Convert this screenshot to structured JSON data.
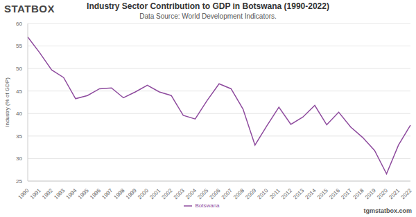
{
  "chart_data": {
    "type": "line",
    "logo": "STATBOX",
    "title": "Industry Sector Contribution to GDP in Botswana (1990-2022)",
    "subtitle": "Data Source: World Development Indicators.",
    "y_label": "Industry (% of GDP)",
    "footer": "tgmstatbox.com",
    "categories": [
      "1990",
      "1991",
      "1992",
      "1993",
      "1994",
      "1995",
      "1996",
      "1997",
      "1998",
      "1999",
      "2000",
      "2001",
      "2002",
      "2003",
      "2004",
      "2005",
      "2006",
      "2007",
      "2008",
      "2009",
      "2010",
      "2011",
      "2012",
      "2013",
      "2014",
      "2015",
      "2016",
      "2017",
      "2018",
      "2019",
      "2020",
      "2021",
      "2022"
    ],
    "series": [
      {
        "name": "Botswana",
        "color": "#8e4b9e",
        "values": [
          57.0,
          53.5,
          49.7,
          48.0,
          43.3,
          44.0,
          45.5,
          45.7,
          43.5,
          44.8,
          46.3,
          44.8,
          44.0,
          39.6,
          38.8,
          42.9,
          46.6,
          45.5,
          41.0,
          33.0,
          37.3,
          41.4,
          37.6,
          39.2,
          41.8,
          37.5,
          40.3,
          37.0,
          34.7,
          31.8,
          26.6,
          33.0,
          37.4
        ]
      }
    ],
    "ylim": [
      25,
      60
    ],
    "yticks": [
      25,
      30,
      35,
      40,
      45,
      50,
      55,
      60
    ],
    "grid": true,
    "legend": "bottom"
  }
}
